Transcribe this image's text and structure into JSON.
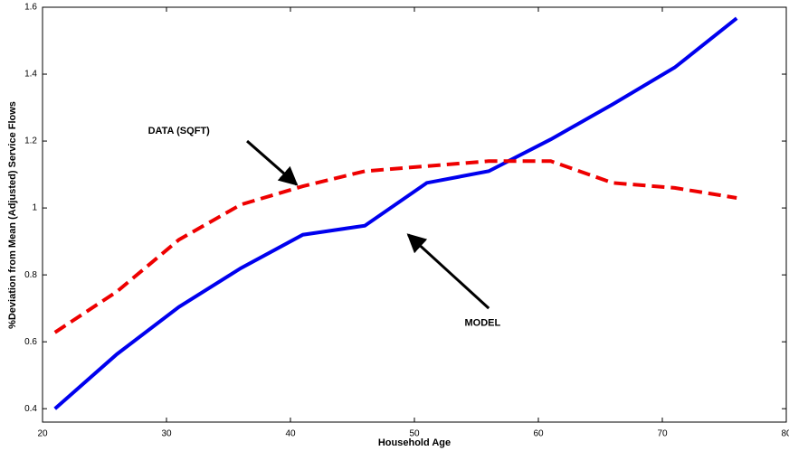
{
  "chart_data": {
    "type": "line",
    "x_label": "Household Age",
    "y_label": "%Deviation from Mean (Adjusted) Service Flows",
    "xlim": [
      20,
      80
    ],
    "xticks": [
      20,
      30,
      40,
      50,
      60,
      70,
      80
    ],
    "ylim": [
      0.36,
      1.6
    ],
    "yticks": [
      0.4,
      0.6,
      0.8,
      1,
      1.2,
      1.4,
      1.6
    ],
    "grid": false,
    "x": [
      21,
      26,
      31,
      36,
      41,
      46,
      51,
      56,
      61,
      66,
      71,
      76
    ],
    "series": [
      {
        "color": "#0000ee",
        "dash": false,
        "values": [
          0.4,
          0.563,
          0.704,
          0.82,
          0.92,
          0.947,
          1.075,
          1.11,
          1.205,
          1.31,
          1.42,
          1.567
        ]
      },
      {
        "color": "#ee0000",
        "dash": true,
        "values": [
          0.628,
          0.75,
          0.905,
          1.01,
          1.065,
          1.11,
          1.125,
          1.14,
          1.14,
          1.075,
          1.06,
          1.03
        ]
      }
    ],
    "annotations": [
      {
        "text": "DATA (SQFT)",
        "x": 31,
        "y": 1.23,
        "arrow_from": [
          36.5,
          1.2
        ],
        "arrow_to": [
          40.5,
          1.07
        ]
      },
      {
        "text": "MODEL",
        "x": 55.5,
        "y": 0.655,
        "arrow_from": [
          56,
          0.7
        ],
        "arrow_to": [
          49.5,
          0.92
        ]
      }
    ]
  }
}
